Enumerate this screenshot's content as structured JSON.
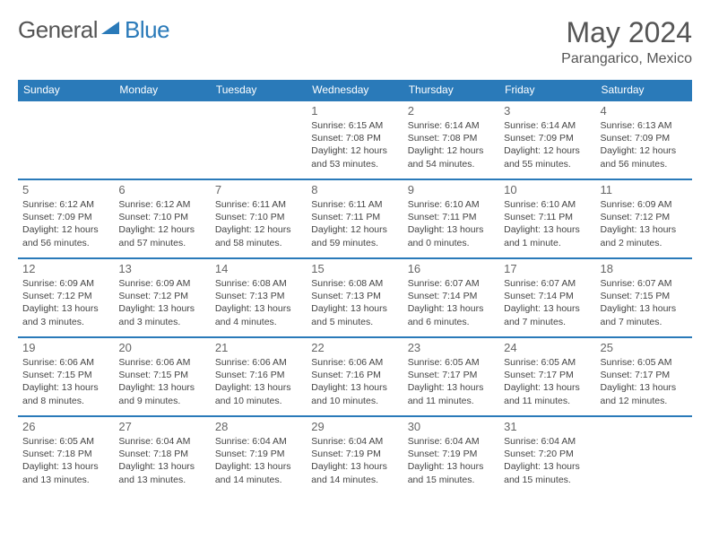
{
  "logo": {
    "text1": "General",
    "text2": "Blue"
  },
  "title": "May 2024",
  "location": "Parangarico, Mexico",
  "brand_color": "#2a7ab9",
  "text_color": "#555555",
  "info_color": "#444444",
  "background": "#ffffff",
  "title_fontsize": 32,
  "location_fontsize": 16,
  "header_fontsize": 12,
  "daynum_fontsize": 13,
  "info_fontsize": 10.5,
  "day_headers": [
    "Sunday",
    "Monday",
    "Tuesday",
    "Wednesday",
    "Thursday",
    "Friday",
    "Saturday"
  ],
  "weeks": [
    [
      {
        "day": "",
        "sunrise": "",
        "sunset": "",
        "daylight": ""
      },
      {
        "day": "",
        "sunrise": "",
        "sunset": "",
        "daylight": ""
      },
      {
        "day": "",
        "sunrise": "",
        "sunset": "",
        "daylight": ""
      },
      {
        "day": "1",
        "sunrise": "Sunrise: 6:15 AM",
        "sunset": "Sunset: 7:08 PM",
        "daylight": "Daylight: 12 hours and 53 minutes."
      },
      {
        "day": "2",
        "sunrise": "Sunrise: 6:14 AM",
        "sunset": "Sunset: 7:08 PM",
        "daylight": "Daylight: 12 hours and 54 minutes."
      },
      {
        "day": "3",
        "sunrise": "Sunrise: 6:14 AM",
        "sunset": "Sunset: 7:09 PM",
        "daylight": "Daylight: 12 hours and 55 minutes."
      },
      {
        "day": "4",
        "sunrise": "Sunrise: 6:13 AM",
        "sunset": "Sunset: 7:09 PM",
        "daylight": "Daylight: 12 hours and 56 minutes."
      }
    ],
    [
      {
        "day": "5",
        "sunrise": "Sunrise: 6:12 AM",
        "sunset": "Sunset: 7:09 PM",
        "daylight": "Daylight: 12 hours and 56 minutes."
      },
      {
        "day": "6",
        "sunrise": "Sunrise: 6:12 AM",
        "sunset": "Sunset: 7:10 PM",
        "daylight": "Daylight: 12 hours and 57 minutes."
      },
      {
        "day": "7",
        "sunrise": "Sunrise: 6:11 AM",
        "sunset": "Sunset: 7:10 PM",
        "daylight": "Daylight: 12 hours and 58 minutes."
      },
      {
        "day": "8",
        "sunrise": "Sunrise: 6:11 AM",
        "sunset": "Sunset: 7:11 PM",
        "daylight": "Daylight: 12 hours and 59 minutes."
      },
      {
        "day": "9",
        "sunrise": "Sunrise: 6:10 AM",
        "sunset": "Sunset: 7:11 PM",
        "daylight": "Daylight: 13 hours and 0 minutes."
      },
      {
        "day": "10",
        "sunrise": "Sunrise: 6:10 AM",
        "sunset": "Sunset: 7:11 PM",
        "daylight": "Daylight: 13 hours and 1 minute."
      },
      {
        "day": "11",
        "sunrise": "Sunrise: 6:09 AM",
        "sunset": "Sunset: 7:12 PM",
        "daylight": "Daylight: 13 hours and 2 minutes."
      }
    ],
    [
      {
        "day": "12",
        "sunrise": "Sunrise: 6:09 AM",
        "sunset": "Sunset: 7:12 PM",
        "daylight": "Daylight: 13 hours and 3 minutes."
      },
      {
        "day": "13",
        "sunrise": "Sunrise: 6:09 AM",
        "sunset": "Sunset: 7:12 PM",
        "daylight": "Daylight: 13 hours and 3 minutes."
      },
      {
        "day": "14",
        "sunrise": "Sunrise: 6:08 AM",
        "sunset": "Sunset: 7:13 PM",
        "daylight": "Daylight: 13 hours and 4 minutes."
      },
      {
        "day": "15",
        "sunrise": "Sunrise: 6:08 AM",
        "sunset": "Sunset: 7:13 PM",
        "daylight": "Daylight: 13 hours and 5 minutes."
      },
      {
        "day": "16",
        "sunrise": "Sunrise: 6:07 AM",
        "sunset": "Sunset: 7:14 PM",
        "daylight": "Daylight: 13 hours and 6 minutes."
      },
      {
        "day": "17",
        "sunrise": "Sunrise: 6:07 AM",
        "sunset": "Sunset: 7:14 PM",
        "daylight": "Daylight: 13 hours and 7 minutes."
      },
      {
        "day": "18",
        "sunrise": "Sunrise: 6:07 AM",
        "sunset": "Sunset: 7:15 PM",
        "daylight": "Daylight: 13 hours and 7 minutes."
      }
    ],
    [
      {
        "day": "19",
        "sunrise": "Sunrise: 6:06 AM",
        "sunset": "Sunset: 7:15 PM",
        "daylight": "Daylight: 13 hours and 8 minutes."
      },
      {
        "day": "20",
        "sunrise": "Sunrise: 6:06 AM",
        "sunset": "Sunset: 7:15 PM",
        "daylight": "Daylight: 13 hours and 9 minutes."
      },
      {
        "day": "21",
        "sunrise": "Sunrise: 6:06 AM",
        "sunset": "Sunset: 7:16 PM",
        "daylight": "Daylight: 13 hours and 10 minutes."
      },
      {
        "day": "22",
        "sunrise": "Sunrise: 6:06 AM",
        "sunset": "Sunset: 7:16 PM",
        "daylight": "Daylight: 13 hours and 10 minutes."
      },
      {
        "day": "23",
        "sunrise": "Sunrise: 6:05 AM",
        "sunset": "Sunset: 7:17 PM",
        "daylight": "Daylight: 13 hours and 11 minutes."
      },
      {
        "day": "24",
        "sunrise": "Sunrise: 6:05 AM",
        "sunset": "Sunset: 7:17 PM",
        "daylight": "Daylight: 13 hours and 11 minutes."
      },
      {
        "day": "25",
        "sunrise": "Sunrise: 6:05 AM",
        "sunset": "Sunset: 7:17 PM",
        "daylight": "Daylight: 13 hours and 12 minutes."
      }
    ],
    [
      {
        "day": "26",
        "sunrise": "Sunrise: 6:05 AM",
        "sunset": "Sunset: 7:18 PM",
        "daylight": "Daylight: 13 hours and 13 minutes."
      },
      {
        "day": "27",
        "sunrise": "Sunrise: 6:04 AM",
        "sunset": "Sunset: 7:18 PM",
        "daylight": "Daylight: 13 hours and 13 minutes."
      },
      {
        "day": "28",
        "sunrise": "Sunrise: 6:04 AM",
        "sunset": "Sunset: 7:19 PM",
        "daylight": "Daylight: 13 hours and 14 minutes."
      },
      {
        "day": "29",
        "sunrise": "Sunrise: 6:04 AM",
        "sunset": "Sunset: 7:19 PM",
        "daylight": "Daylight: 13 hours and 14 minutes."
      },
      {
        "day": "30",
        "sunrise": "Sunrise: 6:04 AM",
        "sunset": "Sunset: 7:19 PM",
        "daylight": "Daylight: 13 hours and 15 minutes."
      },
      {
        "day": "31",
        "sunrise": "Sunrise: 6:04 AM",
        "sunset": "Sunset: 7:20 PM",
        "daylight": "Daylight: 13 hours and 15 minutes."
      },
      {
        "day": "",
        "sunrise": "",
        "sunset": "",
        "daylight": ""
      }
    ]
  ]
}
